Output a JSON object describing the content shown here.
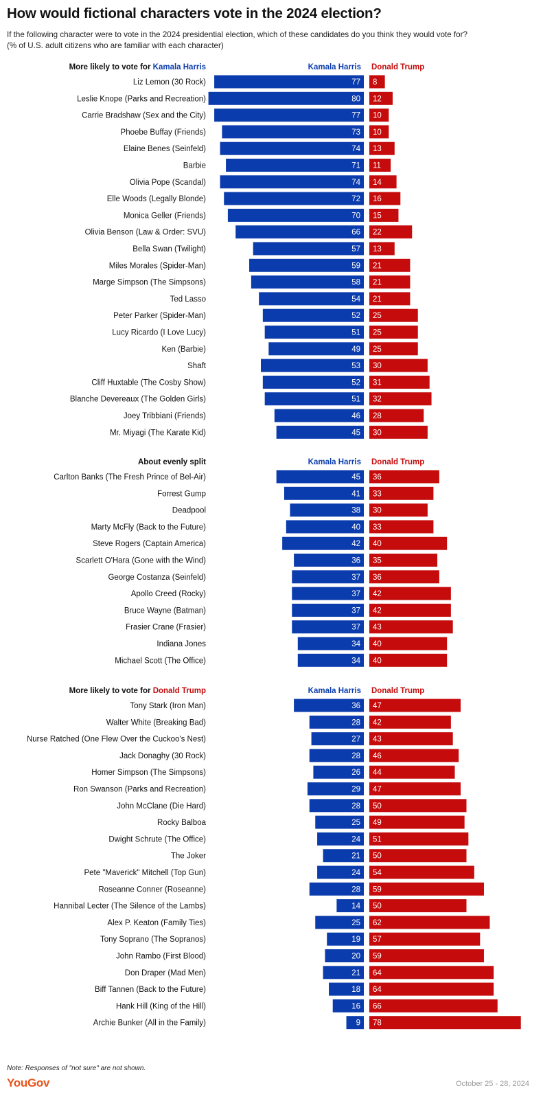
{
  "title": "How would fictional characters vote in the 2024 election?",
  "subtitle_line1": "If the following character were to vote in the 2024 presidential election, which of these candidates do you think they would vote for?",
  "subtitle_line2": "(% of U.S. adult citizens who are familiar with each character)",
  "note": "Note: Responses of \"not sure\" are not shown.",
  "brand": "YouGov",
  "date": "October 25 - 28, 2024",
  "colors": {
    "harris": "#0b3cad",
    "trump": "#c50b0b",
    "harris_text": "#0b3cad",
    "trump_text": "#c50b0b"
  },
  "chart_data": {
    "type": "bar",
    "series_labels": [
      "Kamala Harris",
      "Donald Trump"
    ],
    "groups": [
      {
        "heading_prefix": "More likely to vote for ",
        "heading_name": "Kamala Harris",
        "heading_color": "harris",
        "rows": [
          {
            "character": "Liz Lemon (30 Rock)",
            "harris": 77,
            "trump": 8
          },
          {
            "character": "Leslie Knope (Parks and Recreation)",
            "harris": 80,
            "trump": 12
          },
          {
            "character": "Carrie Bradshaw (Sex and the City)",
            "harris": 77,
            "trump": 10
          },
          {
            "character": "Phoebe Buffay (Friends)",
            "harris": 73,
            "trump": 10
          },
          {
            "character": "Elaine Benes (Seinfeld)",
            "harris": 74,
            "trump": 13
          },
          {
            "character": "Barbie",
            "harris": 71,
            "trump": 11
          },
          {
            "character": "Olivia Pope (Scandal)",
            "harris": 74,
            "trump": 14
          },
          {
            "character": "Elle Woods (Legally Blonde)",
            "harris": 72,
            "trump": 16
          },
          {
            "character": "Monica Geller (Friends)",
            "harris": 70,
            "trump": 15
          },
          {
            "character": "Olivia Benson (Law & Order: SVU)",
            "harris": 66,
            "trump": 22
          },
          {
            "character": "Bella Swan (Twilight)",
            "harris": 57,
            "trump": 13
          },
          {
            "character": "Miles Morales (Spider-Man)",
            "harris": 59,
            "trump": 21
          },
          {
            "character": "Marge Simpson (The Simpsons)",
            "harris": 58,
            "trump": 21
          },
          {
            "character": "Ted Lasso",
            "harris": 54,
            "trump": 21
          },
          {
            "character": "Peter Parker (Spider-Man)",
            "harris": 52,
            "trump": 25
          },
          {
            "character": "Lucy Ricardo (I Love Lucy)",
            "harris": 51,
            "trump": 25
          },
          {
            "character": "Ken (Barbie)",
            "harris": 49,
            "trump": 25
          },
          {
            "character": "Shaft",
            "harris": 53,
            "trump": 30
          },
          {
            "character": "Cliff Huxtable (The Cosby Show)",
            "harris": 52,
            "trump": 31
          },
          {
            "character": "Blanche Devereaux (The Golden Girls)",
            "harris": 51,
            "trump": 32
          },
          {
            "character": "Joey Tribbiani (Friends)",
            "harris": 46,
            "trump": 28
          },
          {
            "character": "Mr. Miyagi (The Karate Kid)",
            "harris": 45,
            "trump": 30
          }
        ]
      },
      {
        "heading_prefix": "About evenly split",
        "heading_name": "",
        "heading_color": "",
        "rows": [
          {
            "character": "Carlton Banks (The Fresh Prince of Bel-Air)",
            "harris": 45,
            "trump": 36
          },
          {
            "character": "Forrest Gump",
            "harris": 41,
            "trump": 33
          },
          {
            "character": "Deadpool",
            "harris": 38,
            "trump": 30
          },
          {
            "character": "Marty McFly (Back to the Future)",
            "harris": 40,
            "trump": 33
          },
          {
            "character": "Steve Rogers (Captain America)",
            "harris": 42,
            "trump": 40
          },
          {
            "character": "Scarlett O'Hara (Gone with the Wind)",
            "harris": 36,
            "trump": 35
          },
          {
            "character": "George Costanza (Seinfeld)",
            "harris": 37,
            "trump": 36
          },
          {
            "character": "Apollo Creed (Rocky)",
            "harris": 37,
            "trump": 42
          },
          {
            "character": "Bruce Wayne (Batman)",
            "harris": 37,
            "trump": 42
          },
          {
            "character": "Frasier Crane (Frasier)",
            "harris": 37,
            "trump": 43
          },
          {
            "character": "Indiana Jones",
            "harris": 34,
            "trump": 40
          },
          {
            "character": "Michael Scott (The Office)",
            "harris": 34,
            "trump": 40
          }
        ]
      },
      {
        "heading_prefix": "More likely to vote for ",
        "heading_name": "Donald Trump",
        "heading_color": "trump",
        "rows": [
          {
            "character": "Tony Stark (Iron Man)",
            "harris": 36,
            "trump": 47
          },
          {
            "character": "Walter White (Breaking Bad)",
            "harris": 28,
            "trump": 42
          },
          {
            "character": "Nurse Ratched (One Flew Over the Cuckoo's Nest)",
            "harris": 27,
            "trump": 43
          },
          {
            "character": "Jack Donaghy (30 Rock)",
            "harris": 28,
            "trump": 46
          },
          {
            "character": "Homer Simpson (The Simpsons)",
            "harris": 26,
            "trump": 44
          },
          {
            "character": "Ron Swanson (Parks and Recreation)",
            "harris": 29,
            "trump": 47
          },
          {
            "character": "John McClane (Die Hard)",
            "harris": 28,
            "trump": 50
          },
          {
            "character": "Rocky Balboa",
            "harris": 25,
            "trump": 49
          },
          {
            "character": "Dwight Schrute (The Office)",
            "harris": 24,
            "trump": 51
          },
          {
            "character": "The Joker",
            "harris": 21,
            "trump": 50
          },
          {
            "character": "Pete \"Maverick\" Mitchell (Top Gun)",
            "harris": 24,
            "trump": 54
          },
          {
            "character": "Roseanne Conner (Roseanne)",
            "harris": 28,
            "trump": 59
          },
          {
            "character": "Hannibal Lecter (The Silence of the Lambs)",
            "harris": 14,
            "trump": 50
          },
          {
            "character": "Alex P. Keaton (Family Ties)",
            "harris": 25,
            "trump": 62
          },
          {
            "character": "Tony Soprano (The Sopranos)",
            "harris": 19,
            "trump": 57
          },
          {
            "character": "John Rambo (First Blood)",
            "harris": 20,
            "trump": 59
          },
          {
            "character": "Don Draper (Mad Men)",
            "harris": 21,
            "trump": 64
          },
          {
            "character": "Biff Tannen (Back to the Future)",
            "harris": 18,
            "trump": 64
          },
          {
            "character": "Hank Hill (King of the Hill)",
            "harris": 16,
            "trump": 66
          },
          {
            "character": "Archie Bunker (All in the Family)",
            "harris": 9,
            "trump": 78
          }
        ]
      }
    ]
  }
}
